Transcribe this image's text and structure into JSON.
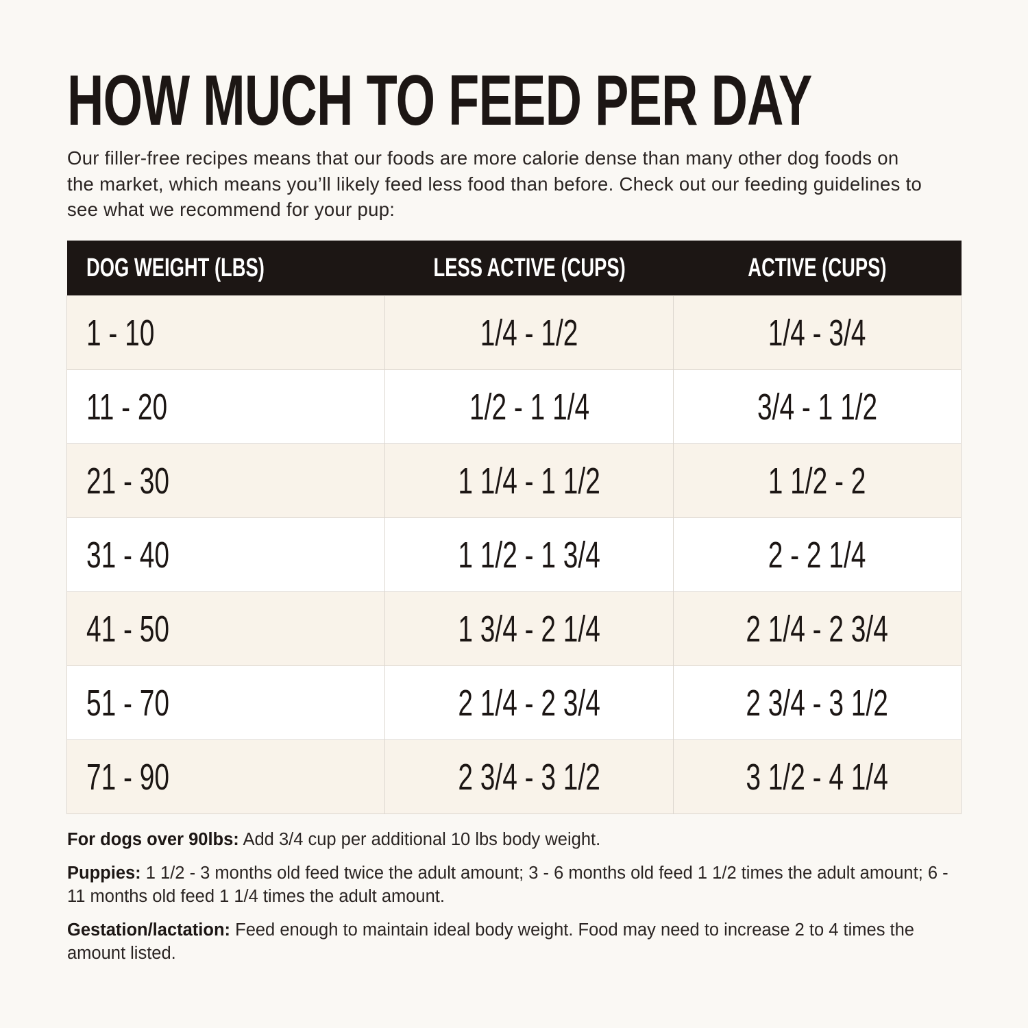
{
  "title": "HOW MUCH TO FEED PER DAY",
  "intro": "Our filler-free recipes means that our foods are more calorie dense than many other dog foods on the market, which means you’ll likely feed less food than before. Check out our feeding guidelines to see what we recommend for your pup:",
  "colors": {
    "header_bg": "#1c1614",
    "row_alt": "#f9f3ea",
    "page_bg": "#faf8f4"
  },
  "table": {
    "headers": [
      "DOG WEIGHT (LBS)",
      "LESS ACTIVE (CUPS)",
      "ACTIVE (CUPS)"
    ],
    "rows": [
      [
        "1 - 10",
        "1/4 - 1/2",
        "1/4 - 3/4"
      ],
      [
        "11 - 20",
        "1/2 - 1 1/4",
        "3/4 - 1 1/2"
      ],
      [
        "21 - 30",
        "1 1/4 - 1 1/2",
        "1 1/2 - 2"
      ],
      [
        "31 - 40",
        "1 1/2 - 1 3/4",
        "2 - 2 1/4"
      ],
      [
        "41 - 50",
        "1 3/4 - 2 1/4",
        "2 1/4 - 2 3/4"
      ],
      [
        "51 - 70",
        "2 1/4 - 2 3/4",
        "2 3/4 - 3 1/2"
      ],
      [
        "71 - 90",
        "2 3/4 - 3 1/2",
        "3 1/2 - 4 1/4"
      ]
    ]
  },
  "notes": [
    {
      "label": "For dogs over 90lbs:",
      "text": " Add 3/4 cup per additional 10 lbs body weight."
    },
    {
      "label": "Puppies:",
      "text": " 1 1/2 - 3 months old feed twice the adult amount; 3 - 6 months old feed 1 1/2 times the adult amount; 6 - 11 months old feed 1 1/4 times the adult amount."
    },
    {
      "label": "Gestation/lactation:",
      "text": " Feed enough to maintain ideal body weight. Food may need to increase 2 to 4 times the amount listed."
    }
  ]
}
